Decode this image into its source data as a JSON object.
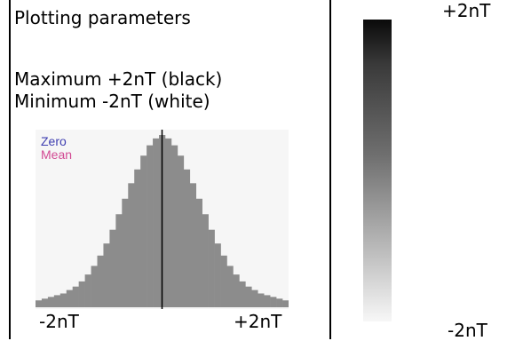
{
  "panel": {
    "title": "Plotting parameters",
    "maximum_line": "Maximum +2nT (black)",
    "minimum_line": "Minimum -2nT (white)"
  },
  "histogram": {
    "legend": {
      "zero_label": "Zero",
      "mean_label": "Mean"
    },
    "x_min_label": "-2nT",
    "x_max_label": "+2nT",
    "fill_color": "#8c8c8c",
    "background_color": "#f6f6f6",
    "center_line_color": "#000000"
  },
  "chart_data": {
    "type": "bar",
    "x": [
      -2.0,
      -1.9,
      -1.8,
      -1.7,
      -1.6,
      -1.5,
      -1.4,
      -1.3,
      -1.2,
      -1.1,
      -1.0,
      -0.9,
      -0.8,
      -0.7,
      -0.6,
      -0.5,
      -0.4,
      -0.3,
      -0.2,
      -0.1,
      0.0,
      0.1,
      0.2,
      0.3,
      0.4,
      0.5,
      0.6,
      0.7,
      0.8,
      0.9,
      1.0,
      1.1,
      1.2,
      1.3,
      1.4,
      1.5,
      1.6,
      1.7,
      1.8,
      1.9,
      2.0
    ],
    "values": [
      4,
      5,
      6,
      7,
      8,
      10,
      12,
      15,
      19,
      24,
      30,
      37,
      45,
      54,
      63,
      72,
      80,
      88,
      94,
      98,
      100,
      98,
      94,
      88,
      80,
      72,
      63,
      54,
      45,
      37,
      30,
      24,
      19,
      15,
      12,
      10,
      8,
      7,
      6,
      5,
      4
    ],
    "xlim": [
      -2,
      2
    ],
    "ylim": [
      0,
      100
    ],
    "x_tick_labels": [
      "-2nT",
      "+2nT"
    ],
    "legend": [
      "Zero",
      "Mean"
    ],
    "grid": false
  },
  "scale": {
    "top_label": "+2nT",
    "bottom_label": "-2nT",
    "top_color": "#0a0a0a",
    "bottom_color": "#f7f7f7"
  }
}
